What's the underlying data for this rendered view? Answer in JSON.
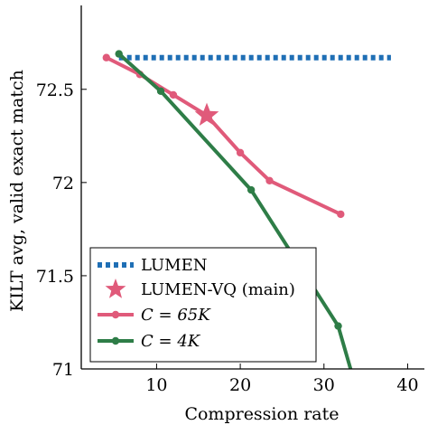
{
  "chart_data": {
    "type": "line",
    "xlabel": "Compression rate",
    "ylabel": "KILT avg, valid exact match",
    "xlim": [
      1,
      42
    ],
    "ylim": [
      71,
      72.95
    ],
    "x_ticks": [
      10,
      20,
      30,
      40
    ],
    "x_tick_labels": [
      "10",
      "20",
      "30",
      "40"
    ],
    "y_ticks": [
      71,
      71.5,
      72,
      72.5
    ],
    "y_tick_labels": [
      "71",
      "71.5",
      "72",
      "72.5"
    ],
    "grid": false,
    "legend_position": "bottom-left",
    "series": [
      {
        "name": "LUMEN",
        "style": "dotted",
        "color": "#1f6fb5",
        "x": [
          5.5,
          38
        ],
        "y": [
          72.67,
          72.67
        ]
      },
      {
        "name": "C = 65K",
        "style": "solid-marker",
        "color": "#e05a7a",
        "x": [
          4,
          8,
          12,
          16,
          20,
          23.5,
          32
        ],
        "y": [
          72.67,
          72.58,
          72.47,
          72.36,
          72.16,
          72.01,
          71.83
        ]
      },
      {
        "name": "C = 4K",
        "style": "solid-marker",
        "color": "#2e7d47",
        "x": [
          5.5,
          10.5,
          21.3,
          31.7,
          33.5
        ],
        "y": [
          72.69,
          72.49,
          71.96,
          71.23,
          70.95
        ]
      }
    ],
    "highlight": {
      "name": "LUMEN-VQ (main)",
      "marker": "star",
      "color": "#e05a7a",
      "x": 16,
      "y": 72.36
    },
    "legend": [
      {
        "key": "lumen",
        "text": "LUMEN"
      },
      {
        "key": "lumen_vq",
        "text": "LUMEN-VQ (main)"
      },
      {
        "key": "c65k",
        "prefix": "C",
        "eq": " = ",
        "suffix": "65K"
      },
      {
        "key": "c4k",
        "prefix": "C",
        "eq": " = ",
        "suffix": "4K"
      }
    ]
  }
}
